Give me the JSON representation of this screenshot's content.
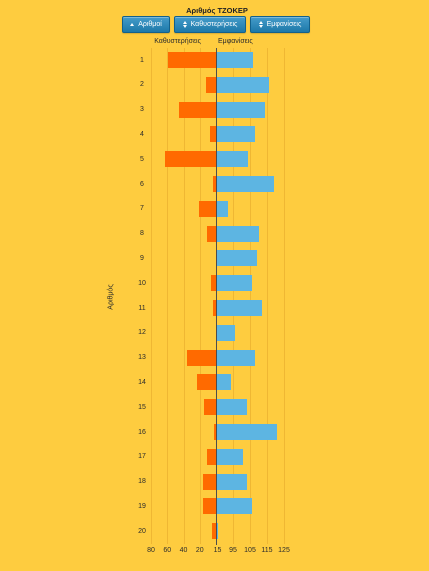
{
  "colors": {
    "background": "#FECC3F",
    "button": "#2189C0",
    "text": "#2b2b2b"
  },
  "sort_buttons": [
    {
      "label": "Αριθμοί",
      "icon": "sort-ascending-icon"
    },
    {
      "label": "Καθυστερήσεις",
      "icon": "sort-icon"
    },
    {
      "label": "Εμφανίσεις",
      "icon": "sort-icon"
    }
  ],
  "chart_data": {
    "type": "bar",
    "orientation": "horizontal",
    "diverging": true,
    "title": "Αριθμός ΤΖΟΚΕΡ",
    "ylabel": "Αριθμός",
    "categories": [
      "1",
      "2",
      "3",
      "4",
      "5",
      "6",
      "7",
      "8",
      "9",
      "10",
      "11",
      "12",
      "13",
      "14",
      "15",
      "16",
      "17",
      "18",
      "19",
      "20"
    ],
    "series": [
      {
        "name": "Καθυστερήσεις",
        "side": "left",
        "color": "#FF6A00",
        "values": [
          59,
          12,
          46,
          7,
          63,
          4,
          21,
          11,
          0,
          6,
          4,
          0,
          36,
          23,
          15,
          2,
          11,
          16,
          16,
          5
        ]
      },
      {
        "name": "Εμφανίσεις",
        "side": "right",
        "color": "#5DB5E2",
        "values": [
          107,
          116,
          114,
          108,
          104,
          119,
          92,
          110,
          109,
          106,
          112,
          96,
          108,
          94,
          103,
          121,
          101,
          103,
          106,
          86
        ]
      }
    ],
    "left_axis": {
      "range": [
        0,
        80
      ],
      "ticks": [
        80,
        60,
        40,
        20
      ]
    },
    "right_axis": {
      "range": [
        85,
        125
      ],
      "ticks": [
        95,
        105,
        115,
        125
      ]
    },
    "center_tick_label": "15",
    "grid": true
  }
}
